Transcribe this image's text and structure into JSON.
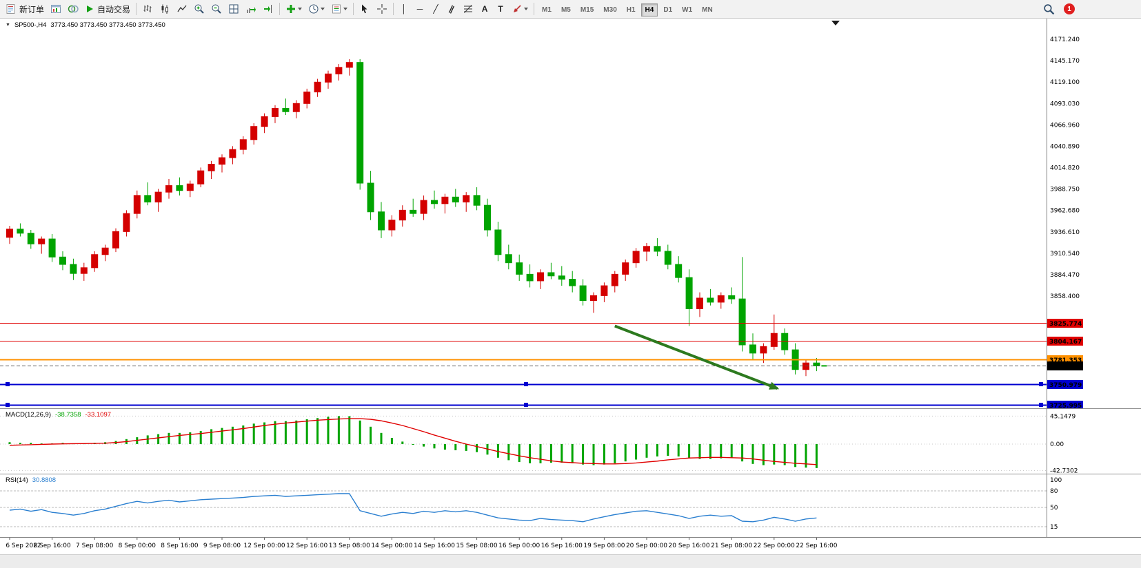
{
  "toolbar": {
    "new_order_label": "新订单",
    "autotrading_label": "自动交易",
    "timeframes": [
      "M1",
      "M5",
      "M15",
      "M30",
      "H1",
      "H4",
      "D1",
      "W1",
      "MN"
    ],
    "active_timeframe": "H4",
    "badge_count": "1",
    "glyphs": {
      "vertical_line": "│",
      "horizontal_line": "─",
      "trendline": "╱",
      "channel": "∥",
      "text_tool": "A",
      "label_tool": "T"
    }
  },
  "chart": {
    "symbol_header": "SP500-,H4",
    "ohlc_text": "3773.450 3773.450 3773.450 3773.450"
  },
  "chart_data": {
    "type": "candlestick",
    "symbol": "SP500-",
    "timeframe": "H4",
    "ylim": [
      3722,
      4180
    ],
    "price_axis_labels": [
      "4171.240",
      "4145.170",
      "4119.100",
      "4093.030",
      "4066.960",
      "4040.890",
      "4014.820",
      "3988.750",
      "3962.680",
      "3936.610",
      "3910.540",
      "3884.470",
      "3858.400"
    ],
    "time_axis_labels": [
      "6 Sep 2022",
      "6 Sep 16:00",
      "7 Sep 08:00",
      "8 Sep 00:00",
      "8 Sep 16:00",
      "9 Sep 08:00",
      "12 Sep 00:00",
      "12 Sep 16:00",
      "13 Sep 08:00",
      "14 Sep 00:00",
      "14 Sep 16:00",
      "15 Sep 08:00",
      "16 Sep 00:00",
      "16 Sep 16:00",
      "19 Sep 08:00",
      "20 Sep 00:00",
      "20 Sep 16:00",
      "21 Sep 08:00",
      "22 Sep 00:00",
      "22 Sep 16:00"
    ],
    "candles_ohlc": [
      [
        3930,
        3944,
        3922,
        3940
      ],
      [
        3940,
        3947,
        3931,
        3935
      ],
      [
        3935,
        3939,
        3916,
        3922
      ],
      [
        3922,
        3931,
        3910,
        3928
      ],
      [
        3928,
        3934,
        3900,
        3906
      ],
      [
        3906,
        3913,
        3890,
        3897
      ],
      [
        3897,
        3904,
        3878,
        3886
      ],
      [
        3886,
        3899,
        3877,
        3893
      ],
      [
        3893,
        3913,
        3888,
        3909
      ],
      [
        3909,
        3921,
        3901,
        3917
      ],
      [
        3917,
        3941,
        3912,
        3937
      ],
      [
        3937,
        3963,
        3931,
        3959
      ],
      [
        3959,
        3987,
        3953,
        3981
      ],
      [
        3981,
        3997,
        3969,
        3973
      ],
      [
        3973,
        3989,
        3961,
        3985
      ],
      [
        3985,
        4001,
        3977,
        3993
      ],
      [
        3993,
        4003,
        3981,
        3987
      ],
      [
        3987,
        3999,
        3979,
        3995
      ],
      [
        3995,
        4015,
        3991,
        4011
      ],
      [
        4011,
        4023,
        4001,
        4019
      ],
      [
        4019,
        4031,
        4009,
        4027
      ],
      [
        4027,
        4041,
        4019,
        4037
      ],
      [
        4037,
        4053,
        4031,
        4049
      ],
      [
        4049,
        4069,
        4043,
        4065
      ],
      [
        4065,
        4081,
        4057,
        4077
      ],
      [
        4077,
        4091,
        4069,
        4087
      ],
      [
        4087,
        4099,
        4079,
        4083
      ],
      [
        4083,
        4097,
        4075,
        4093
      ],
      [
        4093,
        4111,
        4087,
        4107
      ],
      [
        4107,
        4123,
        4101,
        4119
      ],
      [
        4119,
        4133,
        4111,
        4129
      ],
      [
        4129,
        4141,
        4121,
        4137
      ],
      [
        4137,
        4147,
        4127,
        4143
      ],
      [
        4143,
        4147,
        3988,
        3996
      ],
      [
        3996,
        4011,
        3951,
        3961
      ],
      [
        3961,
        3973,
        3929,
        3939
      ],
      [
        3939,
        3957,
        3931,
        3951
      ],
      [
        3951,
        3969,
        3943,
        3963
      ],
      [
        3963,
        3977,
        3955,
        3959
      ],
      [
        3959,
        3981,
        3951,
        3975
      ],
      [
        3975,
        3987,
        3965,
        3971
      ],
      [
        3971,
        3983,
        3959,
        3979
      ],
      [
        3979,
        3989,
        3967,
        3973
      ],
      [
        3973,
        3985,
        3961,
        3981
      ],
      [
        3981,
        3991,
        3963,
        3969
      ],
      [
        3969,
        3977,
        3931,
        3939
      ],
      [
        3939,
        3949,
        3901,
        3909
      ],
      [
        3909,
        3921,
        3891,
        3899
      ],
      [
        3899,
        3909,
        3877,
        3885
      ],
      [
        3885,
        3897,
        3869,
        3877
      ],
      [
        3877,
        3891,
        3867,
        3887
      ],
      [
        3887,
        3899,
        3879,
        3883
      ],
      [
        3883,
        3895,
        3871,
        3879
      ],
      [
        3879,
        3889,
        3863,
        3871
      ],
      [
        3871,
        3879,
        3847,
        3853
      ],
      [
        3853,
        3863,
        3838,
        3859
      ],
      [
        3859,
        3875,
        3851,
        3871
      ],
      [
        3871,
        3889,
        3863,
        3885
      ],
      [
        3885,
        3903,
        3877,
        3899
      ],
      [
        3899,
        3917,
        3893,
        3913
      ],
      [
        3913,
        3923,
        3901,
        3919
      ],
      [
        3919,
        3929,
        3907,
        3913
      ],
      [
        3913,
        3921,
        3891,
        3897
      ],
      [
        3897,
        3907,
        3875,
        3881
      ],
      [
        3881,
        3891,
        3822,
        3843
      ],
      [
        3843,
        3863,
        3833,
        3856
      ],
      [
        3856,
        3867,
        3847,
        3851
      ],
      [
        3851,
        3863,
        3843,
        3859
      ],
      [
        3859,
        3869,
        3849,
        3855
      ],
      [
        3855,
        3906,
        3791,
        3799
      ],
      [
        3799,
        3813,
        3781,
        3789
      ],
      [
        3789,
        3801,
        3777,
        3797
      ],
      [
        3797,
        3836,
        3793,
        3813
      ],
      [
        3813,
        3819,
        3787,
        3793
      ],
      [
        3793,
        3801,
        3763,
        3769
      ],
      [
        3769,
        3781,
        3761,
        3777
      ],
      [
        3777,
        3783,
        3767,
        3773.45
      ]
    ],
    "price_lines": [
      {
        "price": 3825.774,
        "label": "3825.774",
        "color": "#e00000",
        "style": "solid",
        "width": 1
      },
      {
        "price": 3804.167,
        "label": "3804.167",
        "color": "#e00000",
        "style": "solid",
        "width": 1
      },
      {
        "price": 3781.353,
        "label": "3781.353",
        "color": "#ff9000",
        "style": "solid",
        "width": 2
      },
      {
        "price": 3773.45,
        "label": "3773.450",
        "color": "#555555",
        "style": "dashed",
        "width": 1,
        "label_bg": "#000000",
        "current": true
      },
      {
        "price": 3750.979,
        "label": "3750.979",
        "color": "#0000d0",
        "style": "solid",
        "width": 2,
        "handles": true
      },
      {
        "price": 3725.995,
        "label": "3725.995",
        "color": "#0000d0",
        "style": "solid",
        "width": 2,
        "handles": true
      }
    ],
    "indicators": {
      "macd": {
        "title": "MACD(12,26,9)",
        "value_main": "-38.7358",
        "value_signal": "-33.1097",
        "scale_labels": [
          "45.1479",
          "0.00",
          "-42.7302"
        ],
        "histogram": [
          3,
          2,
          2,
          1,
          1,
          2,
          1,
          1,
          2,
          3,
          5,
          8,
          11,
          14,
          16,
          18,
          18,
          19,
          21,
          24,
          26,
          28,
          30,
          33,
          35,
          37,
          37,
          38,
          40,
          42,
          44,
          45.1,
          45,
          38,
          28,
          18,
          10,
          4,
          -1,
          -4,
          -7,
          -9,
          -10,
          -11,
          -13,
          -17,
          -22,
          -26,
          -29,
          -31,
          -31,
          -30,
          -30,
          -31,
          -33,
          -34,
          -33,
          -31,
          -28,
          -25,
          -22,
          -20,
          -19,
          -20,
          -23,
          -24,
          -24,
          -23,
          -22,
          -28,
          -32,
          -34,
          -33,
          -34,
          -37,
          -38,
          -38.74
        ],
        "signal": [
          -2,
          -1.5,
          -1,
          -0.5,
          0,
          0.3,
          0.6,
          0.8,
          1,
          1.5,
          2.5,
          4,
          6,
          8,
          10,
          12,
          14,
          15.5,
          17,
          19,
          21,
          23,
          25,
          27.5,
          30,
          32,
          34,
          35.5,
          37,
          38.5,
          39.5,
          40.5,
          41,
          41,
          40,
          37.5,
          34,
          30,
          25,
          20,
          14.5,
          9.5,
          4.5,
          0,
          -4,
          -8,
          -12,
          -15.5,
          -19,
          -22,
          -24.5,
          -27,
          -29,
          -30,
          -31,
          -31.5,
          -32,
          -32,
          -31.5,
          -30.5,
          -29,
          -27.5,
          -25.5,
          -24,
          -22.5,
          -22,
          -21.5,
          -21.5,
          -22,
          -22.5,
          -24,
          -26,
          -28,
          -29.5,
          -31,
          -32,
          -33.11
        ]
      },
      "rsi": {
        "title": "RSI(14)",
        "value": "30.8808",
        "level_labels": [
          "100",
          "80",
          "50",
          "15"
        ],
        "levels": [
          80,
          50,
          15
        ],
        "values": [
          45,
          47,
          43,
          46,
          41,
          39,
          36,
          39,
          44,
          47,
          52,
          57,
          61,
          58,
          61,
          63,
          60,
          62,
          64,
          65,
          66,
          67,
          68,
          70,
          71,
          72,
          70,
          71,
          72,
          73,
          74,
          75,
          75,
          44,
          39,
          34,
          38,
          41,
          39,
          43,
          41,
          44,
          42,
          44,
          41,
          36,
          31,
          29,
          27,
          26,
          30,
          28,
          27,
          26,
          24,
          29,
          33,
          37,
          40,
          43,
          44,
          41,
          38,
          35,
          30,
          34,
          36,
          34,
          35,
          25,
          24,
          27,
          32,
          29,
          25,
          29,
          30.88
        ]
      }
    },
    "annotations": {
      "trend_arrow": {
        "from_bar": 57,
        "from_price": 3822,
        "to_bar": 72.3,
        "to_price": 3746,
        "color": "#2d7a1f"
      }
    },
    "colors": {
      "up": "#d40000",
      "down": "#00a400",
      "macd_histogram": "#00a400",
      "macd_signal": "#e00000",
      "rsi": "#2a7fd0"
    }
  }
}
